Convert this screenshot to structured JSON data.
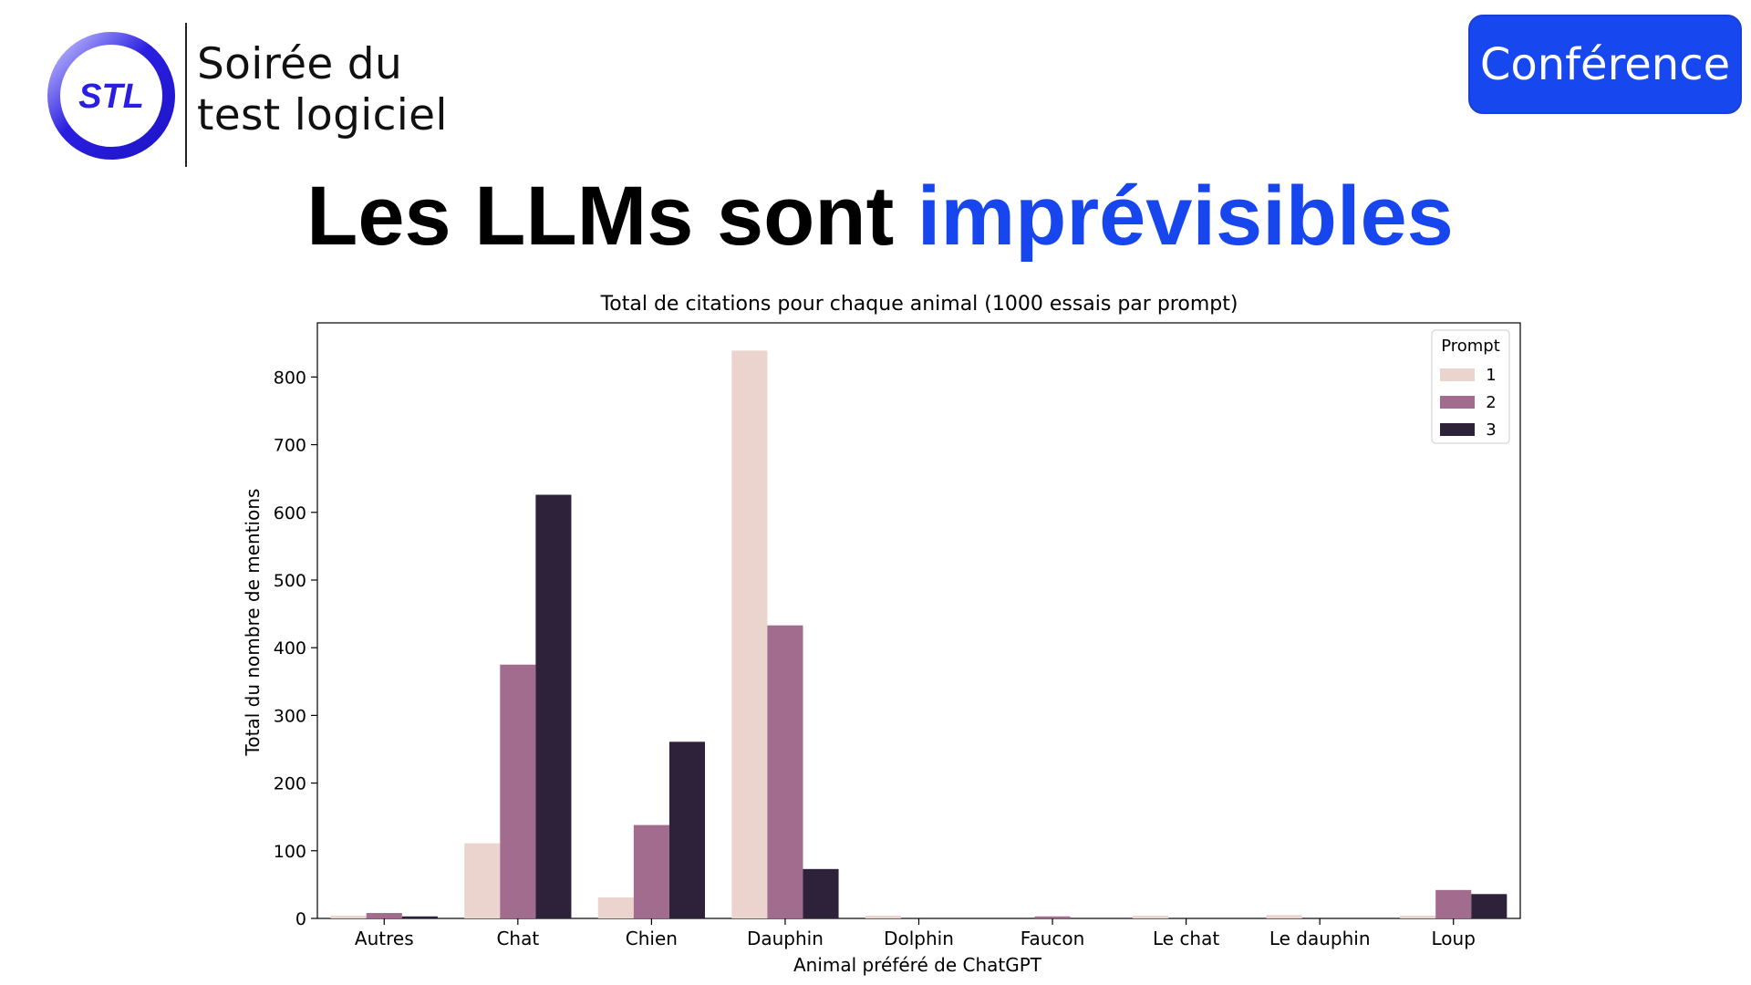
{
  "logo": {
    "mark": "STL",
    "line1": "Soirée du",
    "line2": "test logiciel",
    "colors": {
      "ring": "#2a1fe0",
      "text": "#2a1fe0"
    }
  },
  "header": {
    "badge": "Conférence",
    "title_part1": "Les LLMs sont ",
    "title_part2": "imprévisibles"
  },
  "colors": {
    "accent": "#1746ef"
  },
  "chart_data": {
    "type": "bar",
    "title": "Total de citations pour chaque animal (1000 essais par prompt)",
    "xlabel": "Animal préféré de ChatGPT",
    "ylabel": "Total du nombre de mentions",
    "ylim": [
      0,
      880
    ],
    "yticks": [
      0,
      100,
      200,
      300,
      400,
      500,
      600,
      700,
      800
    ],
    "grid": false,
    "legend": {
      "title": "Prompt",
      "placement": "top-right"
    },
    "categories": [
      "Autres",
      "Chat",
      "Chien",
      "Dauphin",
      "Dolphin",
      "Faucon",
      "Le chat",
      "Le dauphin",
      "Loup"
    ],
    "series": [
      {
        "name": "1",
        "color": "#ebd4cd",
        "values": [
          4,
          111,
          31,
          839,
          4,
          0,
          4,
          5,
          4
        ]
      },
      {
        "name": "2",
        "color": "#a16c8d",
        "values": [
          8,
          375,
          138,
          433,
          0,
          3,
          0,
          0,
          42
        ]
      },
      {
        "name": "3",
        "color": "#2e223a",
        "values": [
          3,
          626,
          261,
          73,
          0,
          0,
          0,
          0,
          36
        ]
      }
    ]
  }
}
